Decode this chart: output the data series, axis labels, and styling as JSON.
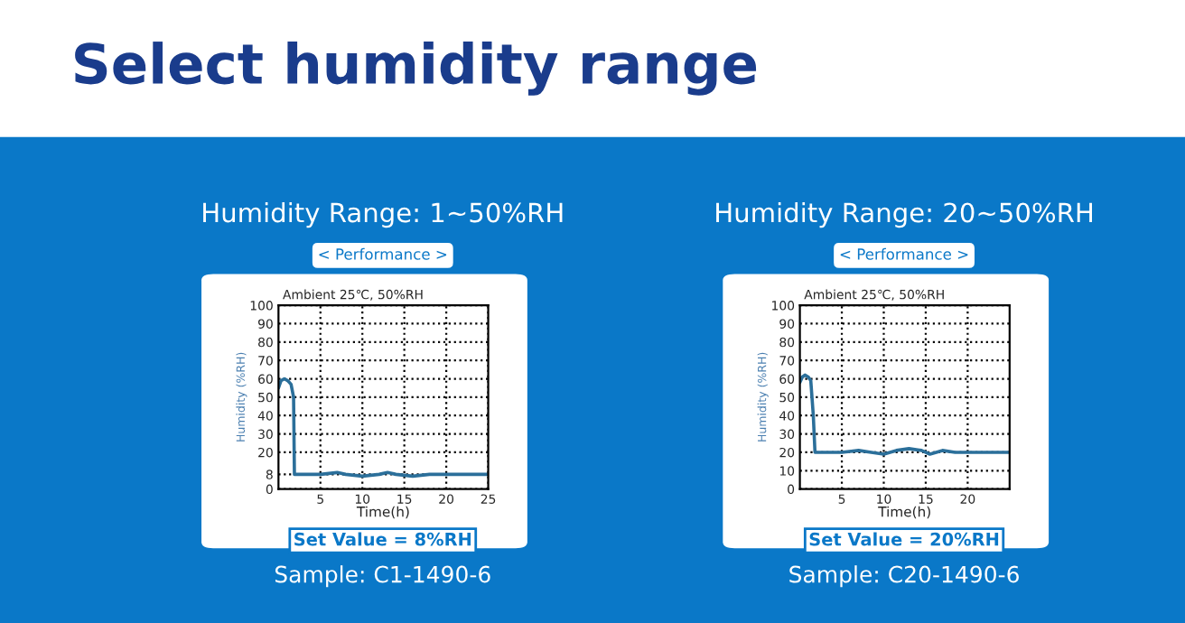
{
  "chart_data": [
    {
      "type": "line",
      "title": "Humidity Range: 1~50%RH",
      "subtitle": "< Performance >",
      "xlabel": "Time(h)",
      "ylabel": "Humidity (%RH)",
      "annotations": [
        "Select humidity range",
        "Ambient 25℃, 50%RH",
        "Set Value = 8%RH",
        "Sample: C1-1490-6"
      ],
      "series": [
        {
          "color": "#2b6f9a",
          "x": [
            0,
            0.3,
            0.7,
            1.1,
            1.5,
            1.8,
            1.9,
            3,
            5,
            7,
            8,
            10,
            12,
            13,
            14,
            16,
            18,
            20,
            22,
            25
          ],
          "values": [
            55,
            59,
            60,
            59,
            57,
            50,
            8,
            8,
            8,
            9,
            8,
            7,
            8,
            9,
            8,
            7,
            8,
            8,
            8,
            8
          ]
        }
      ],
      "xlim": [
        0,
        25
      ],
      "xticks": [
        5,
        10,
        15,
        20,
        25
      ],
      "ylim": [
        0,
        100
      ],
      "yticks": [
        0,
        8,
        20,
        30,
        40,
        50,
        60,
        70,
        80,
        90,
        100
      ],
      "grid": true,
      "line_style": "solid"
    },
    {
      "type": "line",
      "title": "Humidity Range: 20~50%RH",
      "subtitle": "< Performance >",
      "xlabel": "Time(h)",
      "ylabel": "Humidity (%RH)",
      "annotations": [
        "Ambient 25℃, 50%RH",
        "Set Value = 20%RH",
        "Sample: C20-1490-6"
      ],
      "series": [
        {
          "color": "#2b6f9a",
          "x": [
            0,
            0.3,
            0.6,
            1.0,
            1.3,
            1.6,
            1.8,
            3,
            5,
            7,
            8.5,
            10,
            11.5,
            13,
            14.5,
            15.5,
            17,
            18.5,
            20,
            22,
            25
          ],
          "values": [
            58,
            61,
            62,
            61,
            59,
            40,
            20,
            20,
            20,
            21,
            20,
            19,
            21,
            22,
            21,
            19,
            21,
            20,
            20,
            20,
            20
          ]
        }
      ],
      "xlim": [
        0,
        25
      ],
      "xticks": [
        5,
        10,
        15,
        20
      ],
      "ylim": [
        0,
        100
      ],
      "yticks": [
        0,
        10,
        20,
        30,
        40,
        50,
        60,
        70,
        80,
        90,
        100
      ],
      "grid": true,
      "line_style": "solid"
    }
  ]
}
